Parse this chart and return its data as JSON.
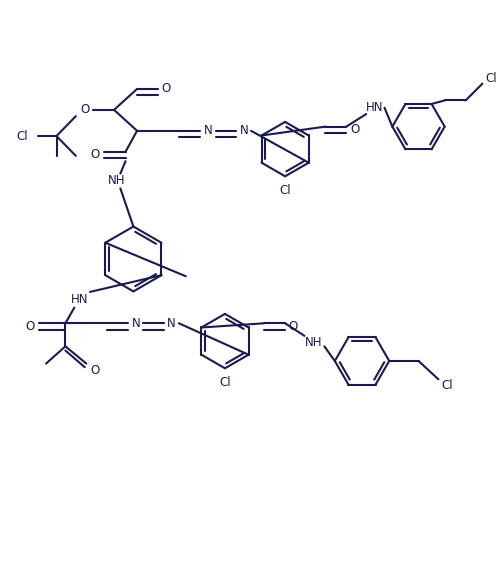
{
  "line_color": "#1a1a50",
  "bg_color": "#ffffff",
  "lw": 1.5,
  "fs": 8.5,
  "fig_w": 4.97,
  "fig_h": 5.65,
  "dpi": 100,
  "xlim": [
    0,
    9.5
  ],
  "ylim": [
    0,
    10.8
  ]
}
